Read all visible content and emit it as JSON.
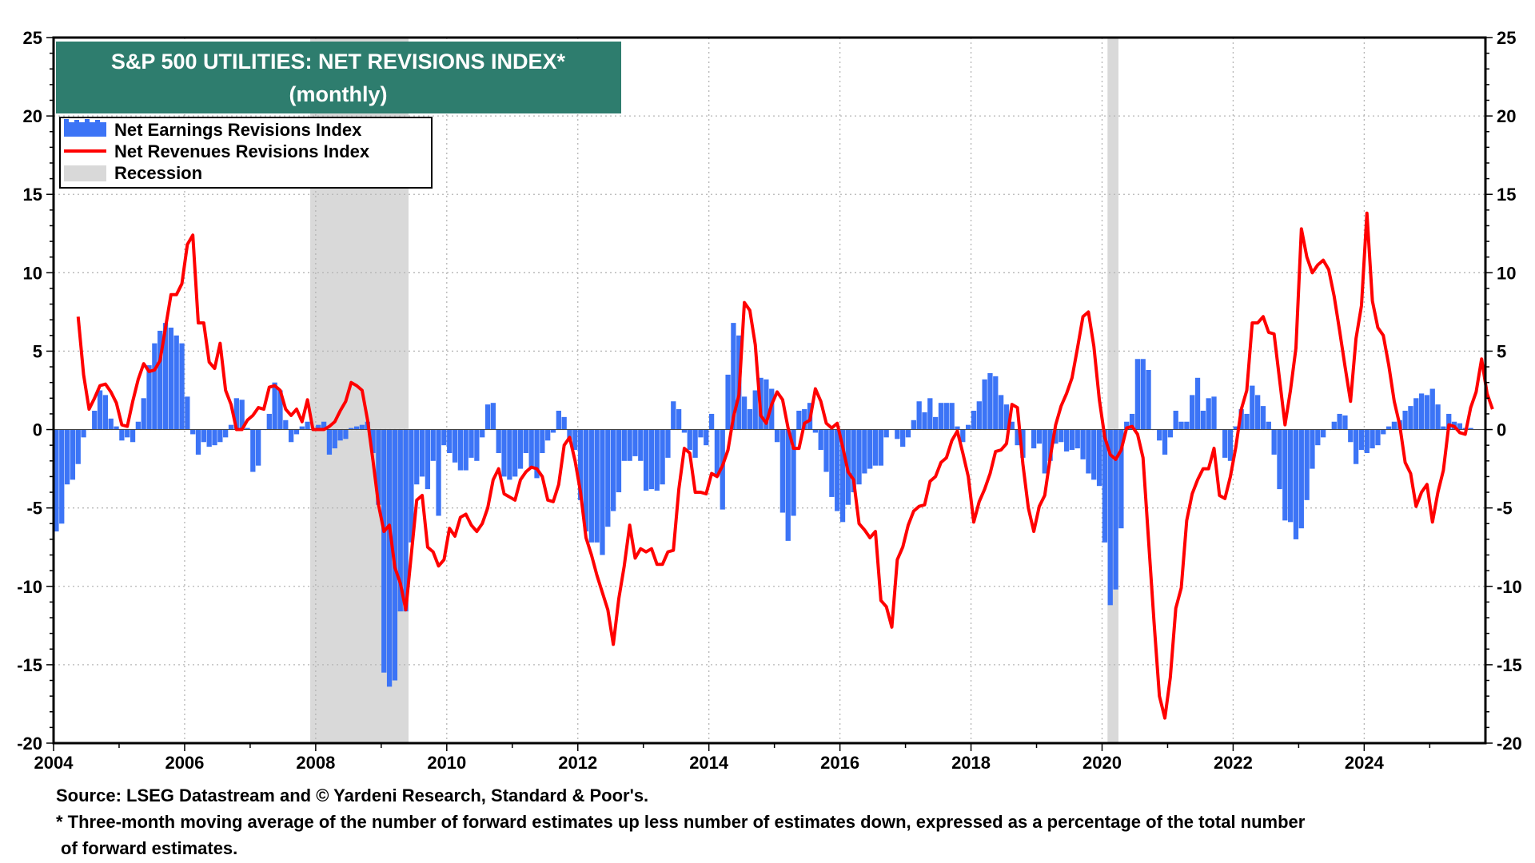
{
  "chart_data": {
    "type": "bar",
    "title": "S&P 500 UTILITIES: NET REVISIONS INDEX*",
    "subtitle": "(monthly)",
    "ylim": [
      -20,
      25
    ],
    "yticks": [
      25,
      20,
      15,
      10,
      5,
      0,
      -5,
      -10,
      -15,
      -20
    ],
    "xlim": [
      2004.0,
      2025.85
    ],
    "xticks": [
      "2004",
      "2006",
      "2008",
      "2010",
      "2012",
      "2014",
      "2016",
      "2018",
      "2020",
      "2022",
      "2024"
    ],
    "grid": true,
    "legend_position": "top-left",
    "legend": [
      "Net Earnings Revisions Index",
      "Net Revenues Revisions Index",
      "Recession"
    ],
    "colors": {
      "earnings": "#3c74f6",
      "revenues": "#ff0000",
      "recession": "#d9d9d9",
      "title_bg": "#2e7d6e"
    },
    "recessions": [
      {
        "start": "2007-12",
        "end": "2009-06"
      },
      {
        "start": "2020-02",
        "end": "2020-04"
      }
    ],
    "series": [
      {
        "name": "Net Earnings Revisions Index",
        "kind": "bar",
        "start": "2004-01",
        "values": [
          -6.5,
          -6,
          -3.5,
          -3.2,
          -2.2,
          -0.5,
          0,
          1.2,
          2.5,
          2.2,
          0.7,
          0.2,
          -0.7,
          -0.5,
          -0.8,
          0.5,
          2,
          4.1,
          5.5,
          6.3,
          6.8,
          6.5,
          6,
          5.5,
          2.1,
          -0.3,
          -1.6,
          -0.8,
          -1.1,
          -1,
          -0.8,
          -0.5,
          0.3,
          2,
          1.9,
          0.1,
          -2.7,
          -2.3,
          0,
          1,
          3,
          2.5,
          0.6,
          -0.8,
          -0.3,
          0.2,
          0.5,
          0,
          0.3,
          0.5,
          -1.6,
          -1.2,
          -0.7,
          -0.6,
          0.1,
          0.2,
          0.3,
          0.5,
          -1.5,
          -4.8,
          -15.5,
          -16.4,
          -16,
          -11.6,
          -11.6,
          -7.2,
          -3.5,
          -3,
          -3.8,
          -2,
          -5.5,
          -1,
          -1.5,
          -2.1,
          -2.6,
          -2.6,
          -1.8,
          -2,
          -0.5,
          1.6,
          1.7,
          -1.5,
          -3,
          -3.2,
          -3,
          -2.5,
          -1.5,
          -2.5,
          -3.1,
          -1.5,
          -0.7,
          -0.2,
          1.2,
          0.8,
          -0.7,
          -1.3,
          -4.5,
          -6.5,
          -7.2,
          -7.2,
          -8,
          -6.2,
          -5.2,
          -4,
          -2,
          -2,
          -1.7,
          -2,
          -3.9,
          -3.8,
          -3.9,
          -3.5,
          -1.8,
          1.8,
          1.3,
          -0.2,
          -1.3,
          -1.8,
          -0.5,
          -1,
          1,
          -3,
          -5.1,
          3.5,
          6.8,
          6,
          2.1,
          1.3,
          2.5,
          3.3,
          3.2,
          2.6,
          -0.8,
          -5.3,
          -7.1,
          -5.5,
          1.2,
          1.3,
          1.7,
          -0.2,
          -1.3,
          -2.7,
          -4.3,
          -5.2,
          -5.9,
          -4.8,
          -4,
          -3.5,
          -2.8,
          -2.5,
          -2.3,
          -2.3,
          -0.5,
          0,
          -0.6,
          -1.1,
          -0.5,
          0.6,
          1.8,
          1.1,
          2,
          0.8,
          1.7,
          1.7,
          1.7,
          0.2,
          -0.8,
          0.3,
          1.2,
          1.8,
          3.2,
          3.6,
          3.4,
          2.2,
          1.6,
          0.5,
          -1,
          -1.8,
          0,
          -1.2,
          -0.9,
          -2.8,
          -2,
          -0.9,
          -0.8,
          -1.4,
          -1.3,
          -1.2,
          -1.9,
          -2.8,
          -3.2,
          -3.6,
          -7.2,
          -11.2,
          -10.2,
          -6.3,
          0.5,
          1,
          4.5,
          4.5,
          3.8,
          0,
          -0.7,
          -1.6,
          -0.5,
          1.2,
          0.5,
          0.5,
          2.2,
          3.3,
          1.2,
          2,
          2.1,
          0,
          -1.8,
          -2,
          0.2,
          1.3,
          1,
          2.8,
          2.2,
          1.5,
          0.5,
          -1.6,
          -3.8,
          -5.8,
          -5.9,
          -7,
          -6.3,
          -4.5,
          -2.5,
          -1,
          -0.5,
          0,
          0.5,
          1,
          0.9,
          -0.8,
          -2.2,
          -1.3,
          -1.5,
          -1.2,
          -1,
          -0.3,
          0.2,
          0.5,
          0.6,
          1.2,
          1.5,
          2,
          2.3,
          2.2,
          2.6,
          1.6,
          0.2,
          1,
          0.5,
          0.4,
          0.1,
          0.1
        ]
      },
      {
        "name": "Net Revenues Revisions Index",
        "kind": "line",
        "start": "2004-05",
        "values": [
          7.2,
          3.5,
          1.3,
          2,
          2.8,
          2.9,
          2.4,
          1.7,
          0.3,
          0.2,
          1.8,
          3.2,
          4.2,
          3.7,
          3.8,
          4.4,
          6.5,
          8.6,
          8.6,
          9.3,
          11.8,
          12.4,
          6.8,
          6.8,
          4.3,
          3.9,
          5.5,
          2.5,
          1.6,
          0,
          0,
          0.6,
          0.9,
          1.4,
          1.3,
          2.7,
          2.8,
          2.5,
          1.3,
          0.9,
          1.3,
          0.5,
          1.9,
          0,
          0,
          0,
          0.2,
          0.5,
          1.2,
          1.8,
          3,
          2.8,
          2.5,
          0.6,
          -2,
          -4.8,
          -6.5,
          -6.1,
          -8.8,
          -9.8,
          -11.5,
          -8,
          -4.5,
          -4.2,
          -7.5,
          -7.8,
          -8.7,
          -8.3,
          -6.3,
          -6.8,
          -5.6,
          -5.4,
          -6.1,
          -6.5,
          -6,
          -5,
          -3.2,
          -2.5,
          -4.1,
          -4.3,
          -4.5,
          -3.2,
          -2.7,
          -2.4,
          -2.5,
          -3,
          -4.5,
          -4.6,
          -3.5,
          -1,
          -0.5,
          -2,
          -4,
          -6.9,
          -8,
          -9.3,
          -10.4,
          -11.5,
          -13.7,
          -10.8,
          -8.7,
          -6.1,
          -8.2,
          -7.6,
          -7.8,
          -7.6,
          -8.6,
          -8.6,
          -7.8,
          -7.7,
          -3.8,
          -1.2,
          -1.5,
          -4,
          -4,
          -4.1,
          -2.8,
          -3,
          -2.3,
          -1.3,
          0.8,
          2.2,
          8.1,
          7.6,
          5.4,
          0.9,
          0.4,
          1.6,
          2.4,
          1.9,
          0.1,
          -1.2,
          -1.2,
          0.4,
          0.6,
          2.6,
          1.8,
          0.4,
          0.1,
          0.4,
          -1.1,
          -2.7,
          -3.2,
          -6,
          -6.4,
          -6.9,
          -6.5,
          -10.9,
          -11.3,
          -12.6,
          -8.3,
          -7.5,
          -6.1,
          -5.2,
          -4.9,
          -4.8,
          -3.3,
          -3,
          -2.1,
          -1.8,
          -0.7,
          -0.1,
          -1.5,
          -3,
          -5.9,
          -4.6,
          -3.8,
          -2.8,
          -1.4,
          -1.3,
          -0.9,
          1.6,
          1.4,
          -2.2,
          -5,
          -6.5,
          -4.9,
          -4.2,
          -1.8,
          0.3,
          1.5,
          2.3,
          3.3,
          5.2,
          7.2,
          7.5,
          5.3,
          1.9,
          -0.5,
          -1.6,
          -1.9,
          -1.3,
          0.1,
          0.2,
          -0.3,
          -1.8,
          -7,
          -12.2,
          -17,
          -18.4,
          -15.8,
          -11.4,
          -10.1,
          -5.8,
          -4.1,
          -3.2,
          -2.5,
          -2.5,
          -1.2,
          -4.2,
          -4.4,
          -3,
          -1.1,
          1.3,
          2.5,
          6.8,
          6.8,
          7.2,
          6.2,
          6.1,
          3.2,
          0.3,
          2.5,
          5.2,
          12.8,
          11,
          10,
          10.5,
          10.8,
          10.2,
          8.5,
          6.3,
          4,
          1.8,
          5.8,
          7.9,
          13.8,
          8.2,
          6.5,
          6,
          4.1,
          1.8,
          0.3,
          -2.1,
          -2.8,
          -4.9,
          -4,
          -3.5,
          -5.9,
          -4,
          -2.6,
          0.3,
          0.2,
          -0.2,
          -0.3,
          1.4,
          2.4,
          4.5,
          2.3,
          1.3
        ]
      }
    ]
  },
  "footer": {
    "source": "Source: LSEG Datastream and © Yardeni Research, Standard & Poor's.",
    "note_line1": "* Three-month moving average of the number of forward estimates up less number of estimates down, expressed as a percentage of the total number",
    "note_line2": "of forward estimates."
  }
}
